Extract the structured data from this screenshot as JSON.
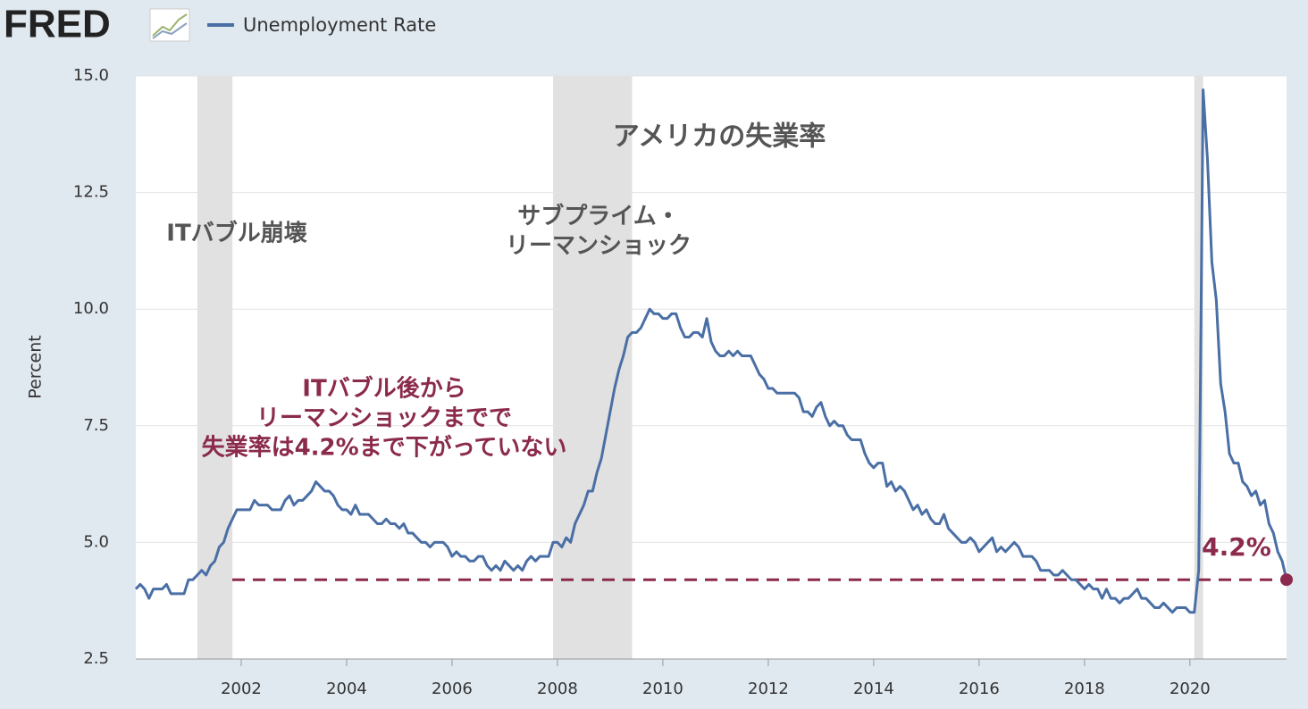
{
  "logo": "FRED",
  "chart_data": {
    "type": "line",
    "title": "アメリカの失業率",
    "y_label": "Percent",
    "grid": true,
    "recession_color": "#e1e1e1",
    "recessions": [
      [
        "2001-03",
        "2001-11"
      ],
      [
        "2007-12",
        "2009-06"
      ],
      [
        "2020-02",
        "2020-04"
      ]
    ],
    "annotations": [
      {
        "lines": [
          "ITバブル崩壊"
        ],
        "color": "#555555"
      },
      {
        "lines": [
          "サブプライム・",
          "リーマンショック"
        ],
        "color": "#555555"
      },
      {
        "lines": [
          "ITバブル後から",
          "リーマンショックまでで",
          "失業率は4.2%まで下がっていない"
        ],
        "color": "#8b2a4c"
      }
    ],
    "reference": {
      "value": 4.2,
      "label": "4.2%",
      "color": "#8b2a4c"
    },
    "xlim": [
      "2000-01",
      "2021-11"
    ],
    "xticks": [
      2002,
      2004,
      2006,
      2008,
      2010,
      2012,
      2014,
      2016,
      2018,
      2020
    ],
    "ylim": [
      2.5,
      15
    ],
    "yticks": [
      {
        "value": 2.5,
        "label": "2.5"
      },
      {
        "value": 5,
        "label": "5.0"
      },
      {
        "value": 7.5,
        "label": "7.5"
      },
      {
        "value": 10,
        "label": "10.0"
      },
      {
        "value": 12.5,
        "label": "12.5"
      },
      {
        "value": 15,
        "label": "15.0"
      }
    ],
    "series": [
      {
        "name": "Unemployment Rate",
        "color": "#4a6fa5",
        "x": [
          "2000-01",
          "2000-02",
          "2000-03",
          "2000-04",
          "2000-05",
          "2000-06",
          "2000-07",
          "2000-08",
          "2000-09",
          "2000-10",
          "2000-11",
          "2000-12",
          "2001-01",
          "2001-02",
          "2001-03",
          "2001-04",
          "2001-05",
          "2001-06",
          "2001-07",
          "2001-08",
          "2001-09",
          "2001-10",
          "2001-11",
          "2001-12",
          "2002-01",
          "2002-02",
          "2002-03",
          "2002-04",
          "2002-05",
          "2002-06",
          "2002-07",
          "2002-08",
          "2002-09",
          "2002-10",
          "2002-11",
          "2002-12",
          "2003-01",
          "2003-02",
          "2003-03",
          "2003-04",
          "2003-05",
          "2003-06",
          "2003-07",
          "2003-08",
          "2003-09",
          "2003-10",
          "2003-11",
          "2003-12",
          "2004-01",
          "2004-02",
          "2004-03",
          "2004-04",
          "2004-05",
          "2004-06",
          "2004-07",
          "2004-08",
          "2004-09",
          "2004-10",
          "2004-11",
          "2004-12",
          "2005-01",
          "2005-02",
          "2005-03",
          "2005-04",
          "2005-05",
          "2005-06",
          "2005-07",
          "2005-08",
          "2005-09",
          "2005-10",
          "2005-11",
          "2005-12",
          "2006-01",
          "2006-02",
          "2006-03",
          "2006-04",
          "2006-05",
          "2006-06",
          "2006-07",
          "2006-08",
          "2006-09",
          "2006-10",
          "2006-11",
          "2006-12",
          "2007-01",
          "2007-02",
          "2007-03",
          "2007-04",
          "2007-05",
          "2007-06",
          "2007-07",
          "2007-08",
          "2007-09",
          "2007-10",
          "2007-11",
          "2007-12",
          "2008-01",
          "2008-02",
          "2008-03",
          "2008-04",
          "2008-05",
          "2008-06",
          "2008-07",
          "2008-08",
          "2008-09",
          "2008-10",
          "2008-11",
          "2008-12",
          "2009-01",
          "2009-02",
          "2009-03",
          "2009-04",
          "2009-05",
          "2009-06",
          "2009-07",
          "2009-08",
          "2009-09",
          "2009-10",
          "2009-11",
          "2009-12",
          "2010-01",
          "2010-02",
          "2010-03",
          "2010-04",
          "2010-05",
          "2010-06",
          "2010-07",
          "2010-08",
          "2010-09",
          "2010-10",
          "2010-11",
          "2010-12",
          "2011-01",
          "2011-02",
          "2011-03",
          "2011-04",
          "2011-05",
          "2011-06",
          "2011-07",
          "2011-08",
          "2011-09",
          "2011-10",
          "2011-11",
          "2011-12",
          "2012-01",
          "2012-02",
          "2012-03",
          "2012-04",
          "2012-05",
          "2012-06",
          "2012-07",
          "2012-08",
          "2012-09",
          "2012-10",
          "2012-11",
          "2012-12",
          "2013-01",
          "2013-02",
          "2013-03",
          "2013-04",
          "2013-05",
          "2013-06",
          "2013-07",
          "2013-08",
          "2013-09",
          "2013-10",
          "2013-11",
          "2013-12",
          "2014-01",
          "2014-02",
          "2014-03",
          "2014-04",
          "2014-05",
          "2014-06",
          "2014-07",
          "2014-08",
          "2014-09",
          "2014-10",
          "2014-11",
          "2014-12",
          "2015-01",
          "2015-02",
          "2015-03",
          "2015-04",
          "2015-05",
          "2015-06",
          "2015-07",
          "2015-08",
          "2015-09",
          "2015-10",
          "2015-11",
          "2015-12",
          "2016-01",
          "2016-02",
          "2016-03",
          "2016-04",
          "2016-05",
          "2016-06",
          "2016-07",
          "2016-08",
          "2016-09",
          "2016-10",
          "2016-11",
          "2016-12",
          "2017-01",
          "2017-02",
          "2017-03",
          "2017-04",
          "2017-05",
          "2017-06",
          "2017-07",
          "2017-08",
          "2017-09",
          "2017-10",
          "2017-11",
          "2017-12",
          "2018-01",
          "2018-02",
          "2018-03",
          "2018-04",
          "2018-05",
          "2018-06",
          "2018-07",
          "2018-08",
          "2018-09",
          "2018-10",
          "2018-11",
          "2018-12",
          "2019-01",
          "2019-02",
          "2019-03",
          "2019-04",
          "2019-05",
          "2019-06",
          "2019-07",
          "2019-08",
          "2019-09",
          "2019-10",
          "2019-11",
          "2019-12",
          "2020-01",
          "2020-02",
          "2020-03",
          "2020-04",
          "2020-05",
          "2020-06",
          "2020-07",
          "2020-08",
          "2020-09",
          "2020-10",
          "2020-11",
          "2020-12",
          "2021-01",
          "2021-02",
          "2021-03",
          "2021-04",
          "2021-05",
          "2021-06",
          "2021-07",
          "2021-08",
          "2021-09",
          "2021-10",
          "2021-11"
        ],
        "values": [
          4.0,
          4.1,
          4.0,
          3.8,
          4.0,
          4.0,
          4.0,
          4.1,
          3.9,
          3.9,
          3.9,
          3.9,
          4.2,
          4.2,
          4.3,
          4.4,
          4.3,
          4.5,
          4.6,
          4.9,
          5.0,
          5.3,
          5.5,
          5.7,
          5.7,
          5.7,
          5.7,
          5.9,
          5.8,
          5.8,
          5.8,
          5.7,
          5.7,
          5.7,
          5.9,
          6.0,
          5.8,
          5.9,
          5.9,
          6.0,
          6.1,
          6.3,
          6.2,
          6.1,
          6.1,
          6.0,
          5.8,
          5.7,
          5.7,
          5.6,
          5.8,
          5.6,
          5.6,
          5.6,
          5.5,
          5.4,
          5.4,
          5.5,
          5.4,
          5.4,
          5.3,
          5.4,
          5.2,
          5.2,
          5.1,
          5.0,
          5.0,
          4.9,
          5.0,
          5.0,
          5.0,
          4.9,
          4.7,
          4.8,
          4.7,
          4.7,
          4.6,
          4.6,
          4.7,
          4.7,
          4.5,
          4.4,
          4.5,
          4.4,
          4.6,
          4.5,
          4.4,
          4.5,
          4.4,
          4.6,
          4.7,
          4.6,
          4.7,
          4.7,
          4.7,
          5.0,
          5.0,
          4.9,
          5.1,
          5.0,
          5.4,
          5.6,
          5.8,
          6.1,
          6.1,
          6.5,
          6.8,
          7.3,
          7.8,
          8.3,
          8.7,
          9.0,
          9.4,
          9.5,
          9.5,
          9.6,
          9.8,
          10.0,
          9.9,
          9.9,
          9.8,
          9.8,
          9.9,
          9.9,
          9.6,
          9.4,
          9.4,
          9.5,
          9.5,
          9.4,
          9.8,
          9.3,
          9.1,
          9.0,
          9.0,
          9.1,
          9.0,
          9.1,
          9.0,
          9.0,
          9.0,
          8.8,
          8.6,
          8.5,
          8.3,
          8.3,
          8.2,
          8.2,
          8.2,
          8.2,
          8.2,
          8.1,
          7.8,
          7.8,
          7.7,
          7.9,
          8.0,
          7.7,
          7.5,
          7.6,
          7.5,
          7.5,
          7.3,
          7.2,
          7.2,
          7.2,
          6.9,
          6.7,
          6.6,
          6.7,
          6.7,
          6.2,
          6.3,
          6.1,
          6.2,
          6.1,
          5.9,
          5.7,
          5.8,
          5.6,
          5.7,
          5.5,
          5.4,
          5.4,
          5.6,
          5.3,
          5.2,
          5.1,
          5.0,
          5.0,
          5.1,
          5.0,
          4.8,
          4.9,
          5.0,
          5.1,
          4.8,
          4.9,
          4.8,
          4.9,
          5.0,
          4.9,
          4.7,
          4.7,
          4.7,
          4.6,
          4.4,
          4.4,
          4.4,
          4.3,
          4.3,
          4.4,
          4.3,
          4.2,
          4.2,
          4.1,
          4.0,
          4.1,
          4.0,
          4.0,
          3.8,
          4.0,
          3.8,
          3.8,
          3.7,
          3.8,
          3.8,
          3.9,
          4.0,
          3.8,
          3.8,
          3.7,
          3.6,
          3.6,
          3.7,
          3.6,
          3.5,
          3.6,
          3.6,
          3.6,
          3.5,
          3.5,
          4.4,
          14.7,
          13.2,
          11.0,
          10.2,
          8.4,
          7.8,
          6.9,
          6.7,
          6.7,
          6.3,
          6.2,
          6.0,
          6.1,
          5.8,
          5.9,
          5.4,
          5.2,
          4.8,
          4.6,
          4.2
        ]
      }
    ]
  }
}
